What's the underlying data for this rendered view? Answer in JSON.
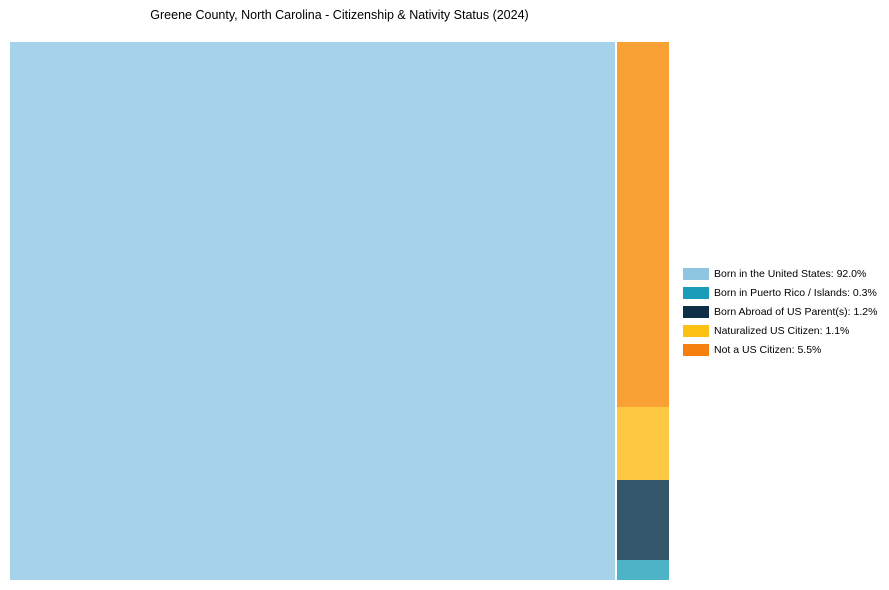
{
  "page": {
    "background_color": "#ffffff"
  },
  "chart_data": {
    "type": "treemap",
    "title": "Greene County, North Carolina - Citizenship & Nativity Status (2024)",
    "items": [
      {
        "name": "Born in the United States",
        "value": 92.0,
        "display_value": "92.0%",
        "legend_label": "Born in the United States: 92.0%",
        "tile_color": "#a6d3ea",
        "legend_color": "#8ec6e2"
      },
      {
        "name": "Born in Puerto Rico / Islands",
        "value": 0.3,
        "display_value": "0.3%",
        "legend_label": "Born in Puerto Rico / Islands: 0.3%",
        "tile_color": "#4db3c7",
        "legend_color": "#1b9cb8"
      },
      {
        "name": "Born Abroad of US Parent(s)",
        "value": 1.2,
        "display_value": "1.2%",
        "legend_label": "Born Abroad of US Parent(s): 1.2%",
        "tile_color": "#35576b",
        "legend_color": "#0d2e44"
      },
      {
        "name": "Naturalized US Citizen",
        "value": 1.1,
        "display_value": "1.1%",
        "legend_label": "Naturalized US Citizen: 1.1%",
        "tile_color": "#fec843",
        "legend_color": "#fdc113"
      },
      {
        "name": "Not a US Citizen",
        "value": 5.5,
        "display_value": "5.5%",
        "legend_label": "Not a US Citizen: 5.5%",
        "tile_color": "#f9a134",
        "legend_color": "#f5800d"
      }
    ],
    "layout": {
      "legend_position": "right",
      "main_tile_index": 0,
      "column_order_top_to_bottom": [
        4,
        3,
        2,
        1
      ],
      "grid": "off",
      "axes": "none"
    }
  }
}
